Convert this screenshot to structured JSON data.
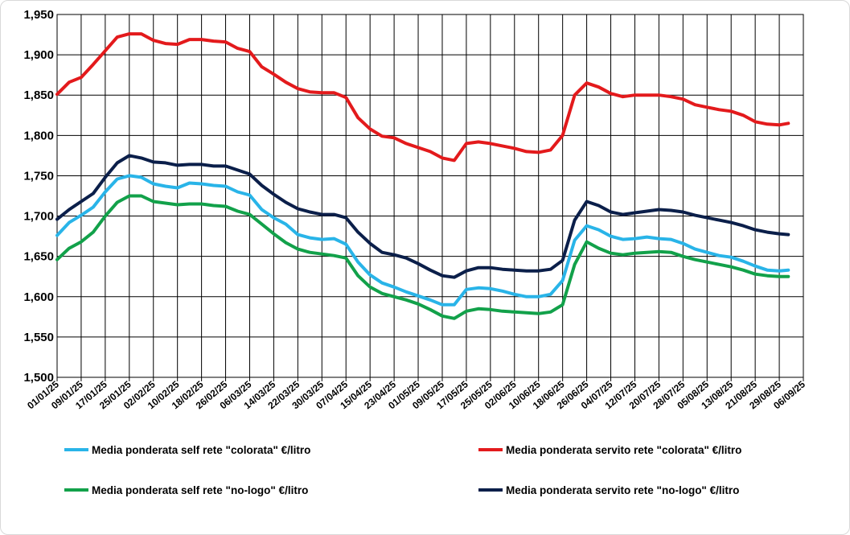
{
  "chart_data": {
    "type": "line",
    "title": "",
    "xlabel": "",
    "ylabel": "",
    "ylim": [
      1.5,
      1.95
    ],
    "yticks": [
      "1,500",
      "1,550",
      "1,600",
      "1,650",
      "1,700",
      "1,750",
      "1,800",
      "1,850",
      "1,900",
      "1,950"
    ],
    "xticks": [
      "01/01/25",
      "09/01/25",
      "17/01/25",
      "25/01/25",
      "02/02/25",
      "10/02/25",
      "18/02/25",
      "26/02/25",
      "06/03/25",
      "14/03/25",
      "22/03/25",
      "30/03/25",
      "07/04/25",
      "15/04/25",
      "23/04/25",
      "01/05/25",
      "09/05/25",
      "17/05/25",
      "25/05/25",
      "02/06/25",
      "10/06/25",
      "18/06/25",
      "26/06/25",
      "04/07/25",
      "12/07/25",
      "20/07/25",
      "28/07/25",
      "05/08/25",
      "13/08/25",
      "21/08/25",
      "29/08/25",
      "06/09/25"
    ],
    "grid": true,
    "legend_position": "bottom",
    "series": [
      {
        "name": "Media ponderata servito rete \"colorata\" €/litro",
        "color": "#e31a1c",
        "x": [
          "01/01/25",
          "05/01/25",
          "09/01/25",
          "13/01/25",
          "17/01/25",
          "21/01/25",
          "25/01/25",
          "29/01/25",
          "02/02/25",
          "06/02/25",
          "10/02/25",
          "14/02/25",
          "18/02/25",
          "22/02/25",
          "26/02/25",
          "02/03/25",
          "06/03/25",
          "10/03/25",
          "14/03/25",
          "18/03/25",
          "22/03/25",
          "26/03/25",
          "30/03/25",
          "03/04/25",
          "07/04/25",
          "11/04/25",
          "15/04/25",
          "19/04/25",
          "23/04/25",
          "27/04/25",
          "01/05/25",
          "05/05/25",
          "09/05/25",
          "13/05/25",
          "17/05/25",
          "21/05/25",
          "25/05/25",
          "29/05/25",
          "02/06/25",
          "06/06/25",
          "10/06/25",
          "14/06/25",
          "18/06/25",
          "22/06/25",
          "26/06/25",
          "30/06/25",
          "04/07/25",
          "08/07/25",
          "12/07/25",
          "16/07/25",
          "20/07/25",
          "24/07/25",
          "28/07/25",
          "01/08/25",
          "05/08/25",
          "09/08/25",
          "13/08/25",
          "17/08/25",
          "21/08/25",
          "25/08/25",
          "29/08/25",
          "01/09/25"
        ],
        "values": [
          1.851,
          1.866,
          1.872,
          1.888,
          1.905,
          1.922,
          1.926,
          1.926,
          1.918,
          1.914,
          1.913,
          1.919,
          1.919,
          1.917,
          1.916,
          1.908,
          1.904,
          1.885,
          1.876,
          1.866,
          1.858,
          1.854,
          1.853,
          1.853,
          1.847,
          1.822,
          1.808,
          1.799,
          1.797,
          1.79,
          1.785,
          1.78,
          1.772,
          1.769,
          1.79,
          1.792,
          1.79,
          1.787,
          1.784,
          1.78,
          1.779,
          1.782,
          1.8,
          1.85,
          1.865,
          1.86,
          1.852,
          1.848,
          1.85,
          1.85,
          1.85,
          1.848,
          1.845,
          1.838,
          1.835,
          1.832,
          1.83,
          1.825,
          1.817,
          1.814,
          1.813,
          1.815
        ]
      },
      {
        "name": "Media ponderata servito rete \"no-logo\" €/litro",
        "color": "#0b1f4a",
        "x": [
          "01/01/25",
          "05/01/25",
          "09/01/25",
          "13/01/25",
          "17/01/25",
          "21/01/25",
          "25/01/25",
          "29/01/25",
          "02/02/25",
          "06/02/25",
          "10/02/25",
          "14/02/25",
          "18/02/25",
          "22/02/25",
          "26/02/25",
          "02/03/25",
          "06/03/25",
          "10/03/25",
          "14/03/25",
          "18/03/25",
          "22/03/25",
          "26/03/25",
          "30/03/25",
          "03/04/25",
          "07/04/25",
          "11/04/25",
          "15/04/25",
          "19/04/25",
          "23/04/25",
          "27/04/25",
          "01/05/25",
          "05/05/25",
          "09/05/25",
          "13/05/25",
          "17/05/25",
          "21/05/25",
          "25/05/25",
          "29/05/25",
          "02/06/25",
          "06/06/25",
          "10/06/25",
          "14/06/25",
          "18/06/25",
          "22/06/25",
          "26/06/25",
          "30/06/25",
          "04/07/25",
          "08/07/25",
          "12/07/25",
          "16/07/25",
          "20/07/25",
          "24/07/25",
          "28/07/25",
          "01/08/25",
          "05/08/25",
          "09/08/25",
          "13/08/25",
          "17/08/25",
          "21/08/25",
          "25/08/25",
          "29/08/25",
          "01/09/25"
        ],
        "values": [
          1.696,
          1.708,
          1.718,
          1.728,
          1.748,
          1.766,
          1.775,
          1.772,
          1.767,
          1.766,
          1.763,
          1.764,
          1.764,
          1.762,
          1.762,
          1.757,
          1.752,
          1.738,
          1.727,
          1.717,
          1.709,
          1.705,
          1.702,
          1.702,
          1.698,
          1.68,
          1.666,
          1.655,
          1.652,
          1.648,
          1.641,
          1.633,
          1.626,
          1.624,
          1.632,
          1.636,
          1.636,
          1.634,
          1.633,
          1.632,
          1.632,
          1.634,
          1.645,
          1.695,
          1.718,
          1.713,
          1.705,
          1.702,
          1.704,
          1.706,
          1.708,
          1.707,
          1.705,
          1.701,
          1.698,
          1.695,
          1.692,
          1.688,
          1.683,
          1.68,
          1.678,
          1.677
        ]
      },
      {
        "name": "Media ponderata self rete \"colorata\" €/litro",
        "color": "#29b4e8",
        "x": [
          "01/01/25",
          "05/01/25",
          "09/01/25",
          "13/01/25",
          "17/01/25",
          "21/01/25",
          "25/01/25",
          "29/01/25",
          "02/02/25",
          "06/02/25",
          "10/02/25",
          "14/02/25",
          "18/02/25",
          "22/02/25",
          "26/02/25",
          "02/03/25",
          "06/03/25",
          "10/03/25",
          "14/03/25",
          "18/03/25",
          "22/03/25",
          "26/03/25",
          "30/03/25",
          "03/04/25",
          "07/04/25",
          "11/04/25",
          "15/04/25",
          "19/04/25",
          "23/04/25",
          "27/04/25",
          "01/05/25",
          "05/05/25",
          "09/05/25",
          "13/05/25",
          "17/05/25",
          "21/05/25",
          "25/05/25",
          "29/05/25",
          "02/06/25",
          "06/06/25",
          "10/06/25",
          "14/06/25",
          "18/06/25",
          "22/06/25",
          "26/06/25",
          "30/06/25",
          "04/07/25",
          "08/07/25",
          "12/07/25",
          "16/07/25",
          "20/07/25",
          "24/07/25",
          "28/07/25",
          "01/08/25",
          "05/08/25",
          "09/08/25",
          "13/08/25",
          "17/08/25",
          "21/08/25",
          "25/08/25",
          "29/08/25",
          "01/09/25"
        ],
        "values": [
          1.676,
          1.692,
          1.701,
          1.711,
          1.73,
          1.746,
          1.75,
          1.748,
          1.74,
          1.737,
          1.735,
          1.741,
          1.74,
          1.738,
          1.737,
          1.73,
          1.726,
          1.708,
          1.698,
          1.69,
          1.677,
          1.673,
          1.671,
          1.672,
          1.665,
          1.643,
          1.627,
          1.617,
          1.612,
          1.606,
          1.601,
          1.596,
          1.59,
          1.59,
          1.609,
          1.611,
          1.61,
          1.607,
          1.603,
          1.6,
          1.6,
          1.603,
          1.62,
          1.67,
          1.688,
          1.683,
          1.675,
          1.671,
          1.672,
          1.674,
          1.672,
          1.671,
          1.666,
          1.659,
          1.655,
          1.651,
          1.649,
          1.644,
          1.638,
          1.633,
          1.632,
          1.633
        ]
      },
      {
        "name": "Media ponderata self rete \"no-logo\" €/litro",
        "color": "#12a14a",
        "x": [
          "01/01/25",
          "05/01/25",
          "09/01/25",
          "13/01/25",
          "17/01/25",
          "21/01/25",
          "25/01/25",
          "29/01/25",
          "02/02/25",
          "06/02/25",
          "10/02/25",
          "14/02/25",
          "18/02/25",
          "22/02/25",
          "26/02/25",
          "02/03/25",
          "06/03/25",
          "10/03/25",
          "14/03/25",
          "18/03/25",
          "22/03/25",
          "26/03/25",
          "30/03/25",
          "03/04/25",
          "07/04/25",
          "11/04/25",
          "15/04/25",
          "19/04/25",
          "23/04/25",
          "27/04/25",
          "01/05/25",
          "05/05/25",
          "09/05/25",
          "13/05/25",
          "17/05/25",
          "21/05/25",
          "25/05/25",
          "29/05/25",
          "02/06/25",
          "06/06/25",
          "10/06/25",
          "14/06/25",
          "18/06/25",
          "22/06/25",
          "26/06/25",
          "30/06/25",
          "04/07/25",
          "08/07/25",
          "12/07/25",
          "16/07/25",
          "20/07/25",
          "24/07/25",
          "28/07/25",
          "01/08/25",
          "05/08/25",
          "09/08/25",
          "13/08/25",
          "17/08/25",
          "21/08/25",
          "25/08/25",
          "29/08/25",
          "01/09/25"
        ],
        "values": [
          1.646,
          1.66,
          1.668,
          1.68,
          1.7,
          1.717,
          1.725,
          1.725,
          1.718,
          1.716,
          1.714,
          1.715,
          1.715,
          1.713,
          1.712,
          1.706,
          1.702,
          1.69,
          1.678,
          1.667,
          1.659,
          1.655,
          1.653,
          1.651,
          1.648,
          1.626,
          1.612,
          1.604,
          1.6,
          1.596,
          1.591,
          1.584,
          1.576,
          1.573,
          1.582,
          1.585,
          1.584,
          1.582,
          1.581,
          1.58,
          1.579,
          1.581,
          1.59,
          1.64,
          1.668,
          1.66,
          1.654,
          1.652,
          1.654,
          1.655,
          1.656,
          1.655,
          1.65,
          1.646,
          1.643,
          1.64,
          1.637,
          1.633,
          1.628,
          1.626,
          1.625,
          1.625
        ]
      }
    ],
    "legend_order": [
      2,
      0,
      3,
      1
    ]
  }
}
